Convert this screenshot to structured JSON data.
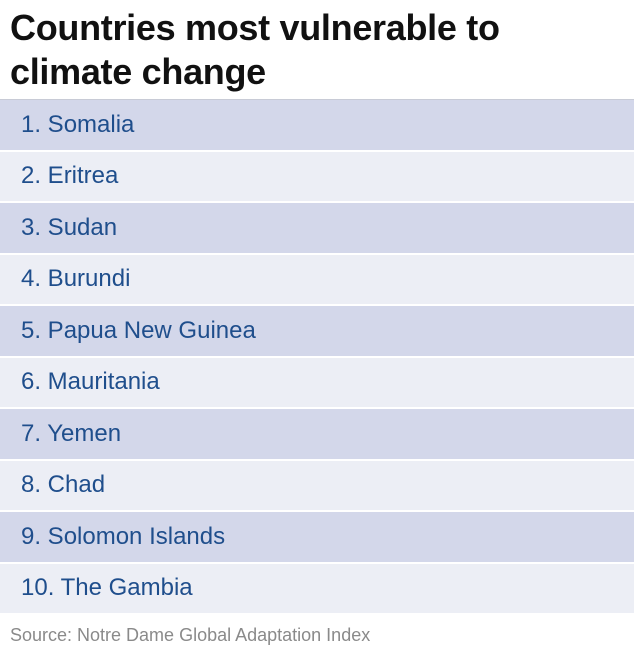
{
  "title": "Countries most vulnerable to climate change",
  "rows": [
    "1. Somalia",
    "2. Eritrea",
    "3. Sudan",
    "4. Burundi",
    "5. Papua New Guinea",
    "6. Mauritania",
    "7. Yemen",
    "8. Chad",
    "9. Solomon Islands",
    "10. The Gambia"
  ],
  "source": "Source: Notre Dame Global Adaptation Index"
}
